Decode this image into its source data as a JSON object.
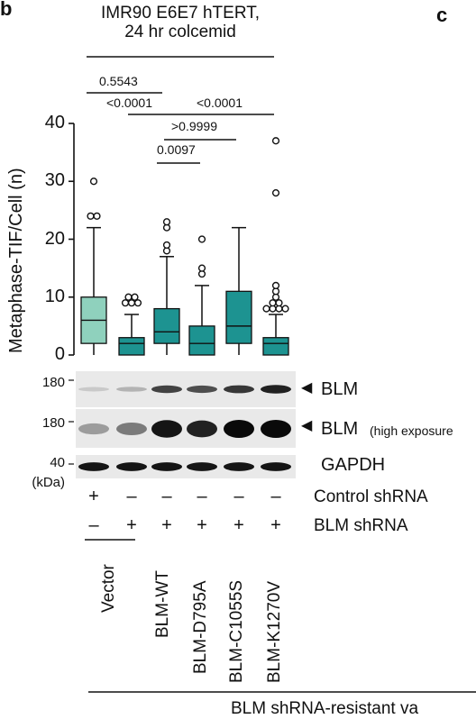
{
  "panel_b_label": "b",
  "panel_c_label": "c",
  "title_line1": "IMR90 E6E7 hTERT,",
  "title_line2": "24 hr colcemid",
  "chart_data": {
    "type": "box",
    "ylabel": "Metaphase-TIF/Cell (n)",
    "ylim": [
      0,
      40
    ],
    "yticks": [
      "0",
      "10",
      "20",
      "30",
      "40"
    ],
    "categories": [
      "Vector",
      "BLM-WT",
      "BLM-D795A",
      "BLM-C1055S",
      "BLM-K1270V"
    ],
    "boxes": [
      {
        "q1": 2,
        "median": 6,
        "q3": 10,
        "min": 0,
        "max": 22,
        "outliers": [
          24,
          24,
          30
        ],
        "color": "#8fd1bd"
      },
      {
        "q1": 0,
        "median": 2,
        "q3": 3,
        "min": 0,
        "max": 7,
        "outliers": [
          9,
          9,
          9,
          10,
          10
        ],
        "color": "#1d9391"
      },
      {
        "q1": 2,
        "median": 4,
        "q3": 8,
        "min": 0,
        "max": 17,
        "outliers": [
          18,
          19,
          22,
          23
        ],
        "color": "#1d9391"
      },
      {
        "q1": 0,
        "median": 2,
        "q3": 5,
        "min": 0,
        "max": 12,
        "outliers": [
          14,
          15,
          20
        ],
        "color": "#1d9391"
      },
      {
        "q1": 2,
        "median": 5,
        "q3": 11,
        "min": 0,
        "max": 22,
        "outliers": [],
        "color": "#1d9391"
      },
      {
        "q1": 0,
        "median": 2,
        "q3": 3,
        "min": 0,
        "max": 7,
        "outliers": [
          8,
          8,
          8,
          8,
          9,
          9,
          10,
          11,
          12,
          28,
          37
        ],
        "color": "#1d9391"
      }
    ],
    "pvalues": [
      "0.5543",
      "<0.0001",
      "<0.0001",
      ">0.9999",
      "0.0097"
    ]
  },
  "blot": {
    "mw_180a": "180",
    "mw_180b": "180",
    "mw_40": "40",
    "mw_unit": "(kDa)",
    "band1_label": "BLM",
    "band2_label": "BLM",
    "band2_note": "(high exposure",
    "band3_label": "GAPDH",
    "band1_intensity": [
      0.15,
      0.25,
      0.75,
      0.7,
      0.8,
      0.9
    ],
    "band2_intensity": [
      0.35,
      0.5,
      0.95,
      0.9,
      1.0,
      1.0
    ],
    "band3_intensity": [
      0.95,
      0.95,
      0.95,
      0.95,
      0.95,
      0.95
    ]
  },
  "treat": {
    "control_label": "Control shRNA",
    "blm_label": "BLM shRNA",
    "control_signs": [
      "+",
      "–",
      "–",
      "–",
      "–",
      "–"
    ],
    "blm_signs": [
      "–",
      "+",
      "+",
      "+",
      "+",
      "+"
    ]
  },
  "footer_label": "BLM shRNA-resistant va"
}
